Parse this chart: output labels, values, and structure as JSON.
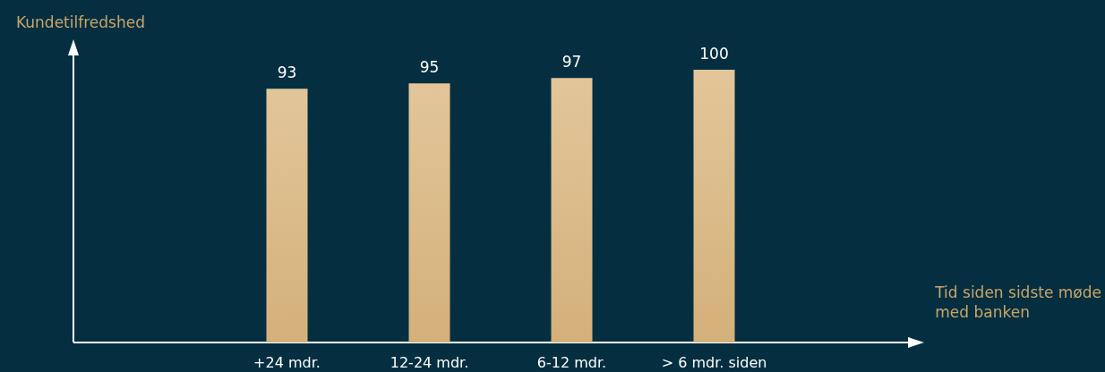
{
  "chart_data": {
    "type": "bar",
    "annotations": [
      "Kundetilfredshed",
      "Tid siden sidste møde\nmed banken"
    ],
    "categories": [
      "+24 mdr.",
      "12-24 mdr.",
      "6-12 mdr.",
      "> 6 mdr. siden"
    ],
    "values": [
      93,
      95,
      97,
      100
    ],
    "color": "#d4b07a",
    "data_labels": true
  }
}
